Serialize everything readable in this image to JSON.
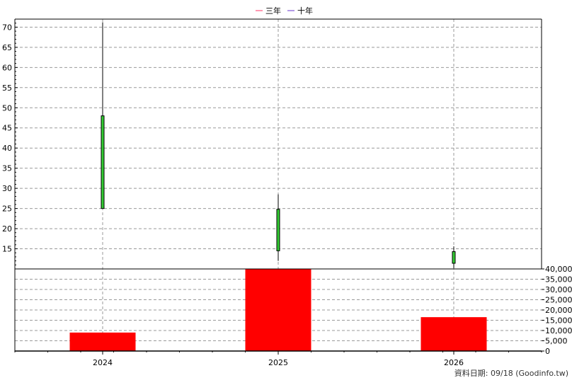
{
  "chart_data": {
    "type": "candlestick+bar",
    "legend": {
      "placement": "top-center",
      "items": [
        {
          "label": "三年",
          "color": "#ff3366"
        },
        {
          "label": "十年",
          "color": "#6633cc"
        }
      ]
    },
    "categories": [
      "2024",
      "2025",
      "2026"
    ],
    "price_axis": {
      "ylim": [
        10,
        72
      ],
      "ticks": [
        "15",
        "20",
        "25",
        "30",
        "35",
        "40",
        "45",
        "50",
        "55",
        "60",
        "65",
        "70"
      ]
    },
    "candles": [
      {
        "category": "2024",
        "open": 25,
        "high": 71.2,
        "low": 25,
        "close": 48,
        "color": "#33cc33"
      },
      {
        "category": "2025",
        "open": 14.5,
        "high": 28.5,
        "low": 12,
        "close": 24.8,
        "color": "#33cc33"
      },
      {
        "category": "2026",
        "open": 11.4,
        "high": 15.6,
        "low": 10.2,
        "close": 14.3,
        "color": "#33cc33"
      }
    ],
    "volume_axis": {
      "ylim": [
        0,
        40000
      ],
      "ticks": [
        "0",
        "5,000",
        "10,000",
        "15,000",
        "20,000",
        "25,000",
        "30,000",
        "35,000",
        "40,000"
      ]
    },
    "volume": {
      "color": "#ff0000",
      "values": [
        9000,
        40000,
        16500
      ]
    },
    "grid": true
  },
  "footer": {
    "source_label": "資料日期: 09/18  (Goodinfo.tw)"
  }
}
